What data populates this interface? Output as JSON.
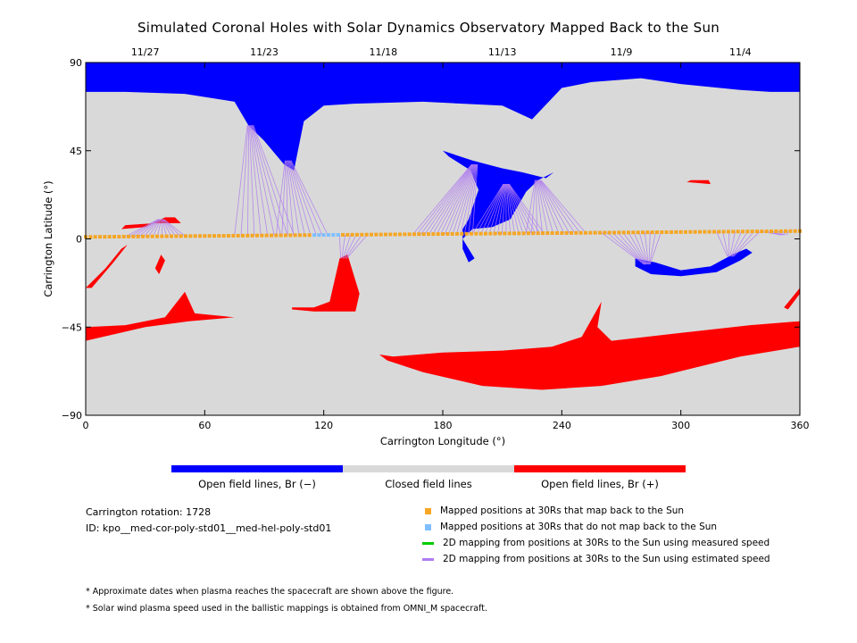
{
  "colors": {
    "open_negative": "#0000ff",
    "closed": "#d9d9d9",
    "open_positive": "#ff0000",
    "mapped_back": "#f5a623",
    "not_mapped": "#7fbfff",
    "measured_speed": "#00cc00",
    "estimated_speed": "#b07cf0"
  },
  "chart_data": {
    "type": "map",
    "title": "Simulated Coronal Holes with Solar Dynamics Observatory Mapped Back to the Sun",
    "xlabel": "Carrington Longitude (°)",
    "ylabel": "Carrington Latitude (°)",
    "xlim": [
      0,
      360
    ],
    "ylim": [
      -90,
      90
    ],
    "x_ticks": [
      "0",
      "60",
      "120",
      "180",
      "240",
      "300",
      "360"
    ],
    "y_ticks": [
      "90",
      "45",
      "0",
      "−45",
      "−90"
    ],
    "top_axis_dates": [
      {
        "label": "11/27",
        "lon": 30
      },
      {
        "label": "11/23",
        "lon": 90
      },
      {
        "label": "11/18",
        "lon": 150
      },
      {
        "label": "11/13",
        "lon": 210
      },
      {
        "label": "11/9",
        "lon": 270
      },
      {
        "label": "11/4",
        "lon": 330
      }
    ],
    "regions": [
      {
        "polarity": "negative",
        "name": "north polar hole",
        "lonlat": [
          [
            0,
            90
          ],
          [
            360,
            90
          ],
          [
            360,
            75
          ],
          [
            345,
            75
          ],
          [
            330,
            76
          ],
          [
            300,
            79
          ],
          [
            280,
            82
          ],
          [
            255,
            80
          ],
          [
            240,
            77
          ],
          [
            225,
            61
          ],
          [
            210,
            68
          ],
          [
            170,
            70
          ],
          [
            135,
            69
          ],
          [
            120,
            68
          ],
          [
            110,
            60
          ],
          [
            105,
            35
          ],
          [
            100,
            38
          ],
          [
            90,
            50
          ],
          [
            82,
            58
          ],
          [
            75,
            70
          ],
          [
            50,
            74
          ],
          [
            20,
            75
          ],
          [
            0,
            75
          ]
        ]
      },
      {
        "polarity": "negative",
        "name": "equatorial hole 185-230",
        "lonlat": [
          [
            180,
            45
          ],
          [
            195,
            40
          ],
          [
            210,
            36
          ],
          [
            220,
            34
          ],
          [
            232,
            31
          ],
          [
            236,
            34
          ],
          [
            228,
            30
          ],
          [
            222,
            24
          ],
          [
            214,
            10
          ],
          [
            205,
            6
          ],
          [
            195,
            5
          ],
          [
            190,
            0
          ],
          [
            193,
            -5
          ],
          [
            196,
            -10
          ],
          [
            193,
            -12
          ],
          [
            190,
            -5
          ],
          [
            190,
            5
          ],
          [
            193,
            10
          ],
          [
            195,
            16
          ],
          [
            198,
            25
          ],
          [
            194,
            35
          ],
          [
            183,
            42
          ]
        ]
      },
      {
        "polarity": "negative",
        "name": "hole near 275-335",
        "lonlat": [
          [
            277,
            -10
          ],
          [
            287,
            -12
          ],
          [
            300,
            -16
          ],
          [
            315,
            -14
          ],
          [
            326,
            -8
          ],
          [
            333,
            -5
          ],
          [
            336,
            -7
          ],
          [
            330,
            -11
          ],
          [
            318,
            -17
          ],
          [
            300,
            -19
          ],
          [
            285,
            -18
          ],
          [
            277,
            -14
          ]
        ]
      },
      {
        "polarity": "positive",
        "name": "south polar hole",
        "lonlat": [
          [
            0,
            -45
          ],
          [
            20,
            -44
          ],
          [
            40,
            -40
          ],
          [
            50,
            -27
          ],
          [
            55,
            -38
          ],
          [
            75,
            -40
          ],
          [
            52,
            -42
          ],
          [
            30,
            -45
          ],
          [
            0,
            -52
          ],
          [
            0,
            -48
          ],
          [
            360,
            -48
          ],
          [
            360,
            -42
          ],
          [
            335,
            -44
          ],
          [
            300,
            -48
          ],
          [
            265,
            -52
          ],
          [
            258,
            -45
          ],
          [
            260,
            -32
          ],
          [
            250,
            -50
          ],
          [
            235,
            -55
          ],
          [
            210,
            -57
          ],
          [
            180,
            -58
          ],
          [
            155,
            -60
          ],
          [
            148,
            -59
          ],
          [
            152,
            -62
          ],
          [
            170,
            -68
          ],
          [
            200,
            -75
          ],
          [
            230,
            -77
          ],
          [
            260,
            -75
          ],
          [
            290,
            -70
          ],
          [
            330,
            -60
          ],
          [
            360,
            -55
          ],
          [
            360,
            -48
          ],
          [
            0,
            -48
          ]
        ]
      },
      {
        "polarity": "positive",
        "name": "hole near 105-140",
        "lonlat": [
          [
            104,
            -35
          ],
          [
            115,
            -35
          ],
          [
            123,
            -32
          ],
          [
            128,
            -10
          ],
          [
            132,
            -8
          ],
          [
            138,
            -28
          ],
          [
            136,
            -37
          ],
          [
            126,
            -37
          ],
          [
            115,
            -37
          ],
          [
            104,
            -36
          ]
        ]
      },
      {
        "polarity": "positive",
        "name": "hole near 20-50",
        "lonlat": [
          [
            18,
            5
          ],
          [
            30,
            6
          ],
          [
            40,
            11
          ],
          [
            45,
            11
          ],
          [
            48,
            8
          ],
          [
            35,
            8
          ],
          [
            20,
            7
          ]
        ]
      },
      {
        "polarity": "positive",
        "name": "strand near 0-20",
        "lonlat": [
          [
            0,
            -25
          ],
          [
            10,
            -15
          ],
          [
            18,
            -5
          ],
          [
            21,
            -3
          ],
          [
            14,
            -12
          ],
          [
            3,
            -25
          ]
        ]
      },
      {
        "polarity": "positive",
        "name": "spot near 37",
        "lonlat": [
          [
            35,
            -15
          ],
          [
            38,
            -8
          ],
          [
            40,
            -11
          ],
          [
            37,
            -18
          ]
        ]
      },
      {
        "polarity": "positive",
        "name": "spot near 305",
        "lonlat": [
          [
            303,
            29
          ],
          [
            315,
            28
          ],
          [
            314,
            30
          ],
          [
            305,
            30
          ]
        ]
      },
      {
        "polarity": "positive",
        "name": "strand near 355",
        "lonlat": [
          [
            352,
            -35
          ],
          [
            360,
            -25
          ],
          [
            360,
            -28
          ],
          [
            354,
            -36
          ]
        ]
      }
    ],
    "trajectory": {
      "lon_start": 0,
      "lon_end": 360,
      "lat_start": 1,
      "lat_end": 4,
      "step": 2.4,
      "not_mapped_lon_range": [
        115,
        128
      ]
    },
    "mapping_lines": [
      {
        "from_lon": 75,
        "to_lon": 83,
        "to_lat": 58,
        "count": 10,
        "spread": 30
      },
      {
        "from_lon": 96,
        "to_lon": 102,
        "to_lat": 40,
        "count": 10,
        "spread": 26
      },
      {
        "from_lon": 165,
        "to_lon": 196,
        "to_lat": 38,
        "count": 16,
        "spread": 30
      },
      {
        "from_lon": 195,
        "to_lon": 212,
        "to_lat": 28,
        "count": 18,
        "spread": 36
      },
      {
        "from_lon": 222,
        "to_lon": 228,
        "to_lat": 30,
        "count": 12,
        "spread": 30
      },
      {
        "from_lon": 260,
        "to_lon": 283,
        "to_lat": -13,
        "count": 12,
        "spread": 30
      },
      {
        "from_lon": 318,
        "to_lon": 325,
        "to_lat": -9,
        "count": 8,
        "spread": 22
      },
      {
        "from_lon": 20,
        "to_lon": 38,
        "to_lat": 10,
        "count": 14,
        "spread": 30
      },
      {
        "from_lon": 128,
        "to_lon": 130,
        "to_lat": -10,
        "count": 6,
        "spread": 14
      },
      {
        "from_lon": 340,
        "to_lon": 352,
        "to_lat": 2,
        "count": 6,
        "spread": 14
      }
    ]
  },
  "colorbar": {
    "labels": [
      "Open field lines, Br (−)",
      "Closed field lines",
      "Open field lines, Br (+)"
    ]
  },
  "info": {
    "rotation": "Carrington rotation: 1728",
    "id": "ID: kpo__med-cor-poly-std01__med-hel-poly-std01"
  },
  "legend": [
    {
      "label": "Mapped positions at 30Rs that map back to the Sun",
      "kind": "square",
      "color_key": "mapped_back"
    },
    {
      "label": "Mapped positions at 30Rs that do not map back to the Sun",
      "kind": "square",
      "color_key": "not_mapped"
    },
    {
      "label": "2D mapping from positions at 30Rs to the Sun using measured speed",
      "kind": "line",
      "color_key": "measured_speed"
    },
    {
      "label": "2D mapping from positions at 30Rs to the Sun using estimated speed",
      "kind": "line",
      "color_key": "estimated_speed"
    }
  ],
  "notes": [
    "* Approximate dates when plasma reaches the spacecraft are shown above the figure.",
    "* Solar wind plasma speed used in the ballistic mappings is obtained from OMNI_M spacecraft."
  ]
}
